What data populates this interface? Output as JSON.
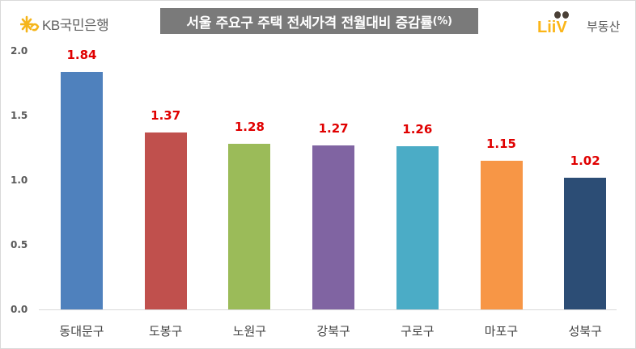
{
  "header": {
    "left_logo": {
      "text": "KB국민은행",
      "icon": "kb-star-icon",
      "color": "#f5b51b"
    },
    "title": "서울 주요구 주택 전세가격 전월대비 증감률",
    "title_unit": "(%)",
    "right_logo": {
      "brand": "LiiV",
      "text": "부동산",
      "color": "#fbb517"
    }
  },
  "chart_data": {
    "type": "bar",
    "title": "서울 주요구 주택 전세가격 전월대비 증감률(%)",
    "xlabel": "",
    "ylabel": "",
    "categories": [
      "동대문구",
      "도봉구",
      "노원구",
      "강북구",
      "구로구",
      "마포구",
      "성북구"
    ],
    "values": [
      1.84,
      1.37,
      1.28,
      1.27,
      1.26,
      1.15,
      1.02
    ],
    "value_labels": [
      "1.84",
      "1.37",
      "1.28",
      "1.27",
      "1.26",
      "1.15",
      "1.02"
    ],
    "colors": [
      "#4f81bd",
      "#c0504d",
      "#9bbb59",
      "#8064a2",
      "#4bacc6",
      "#f79646",
      "#2c4d75"
    ],
    "label_color": "#e00000",
    "ylim": [
      0,
      2.0
    ],
    "yticks": [
      "2.0",
      "1.5",
      "1.0",
      "0.5",
      "0.0"
    ],
    "grid": false,
    "legend": "none"
  }
}
